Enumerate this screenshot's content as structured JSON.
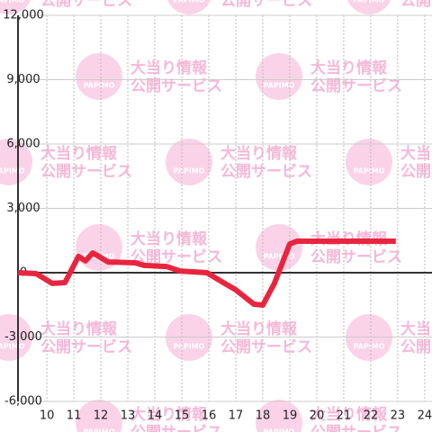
{
  "chart_data": {
    "type": "line",
    "x": [
      8.93,
      9.6,
      10.2,
      10.67,
      11.17,
      11.43,
      11.7,
      11.93,
      12.27,
      13.27,
      13.6,
      14.43,
      14.93,
      15.93,
      16.43,
      17.0,
      17.67,
      18.0,
      18.43,
      19.0,
      19.27,
      22.93
    ],
    "series": [
      {
        "color": "#e8253f",
        "values": [
          0,
          -40,
          -500,
          -460,
          760,
          550,
          920,
          760,
          500,
          460,
          340,
          290,
          80,
          0,
          -380,
          -800,
          -1470,
          -1510,
          -500,
          1340,
          1470,
          1470
        ]
      }
    ],
    "xlim": [
      8.93,
      24.27
    ],
    "xticks": [
      10,
      11,
      12,
      13,
      14,
      15,
      16,
      17,
      18,
      19,
      20,
      21,
      22,
      23,
      24
    ],
    "ylim": [
      -6000,
      12000
    ],
    "yticks": [
      {
        "value": -6000,
        "label": "-6,000"
      },
      {
        "value": -3000,
        "label": "-3,000"
      },
      0,
      {
        "value": 3000,
        "label": "3,000"
      },
      {
        "value": 6000,
        "label": "6,000"
      },
      {
        "value": 9000,
        "label": "9,000"
      },
      {
        "value": 12000,
        "label": "12,000"
      }
    ],
    "grid": true
  },
  "watermark": {
    "logo": "PAPIMO",
    "line1": "大当り情報",
    "line2": "公開サービス"
  }
}
